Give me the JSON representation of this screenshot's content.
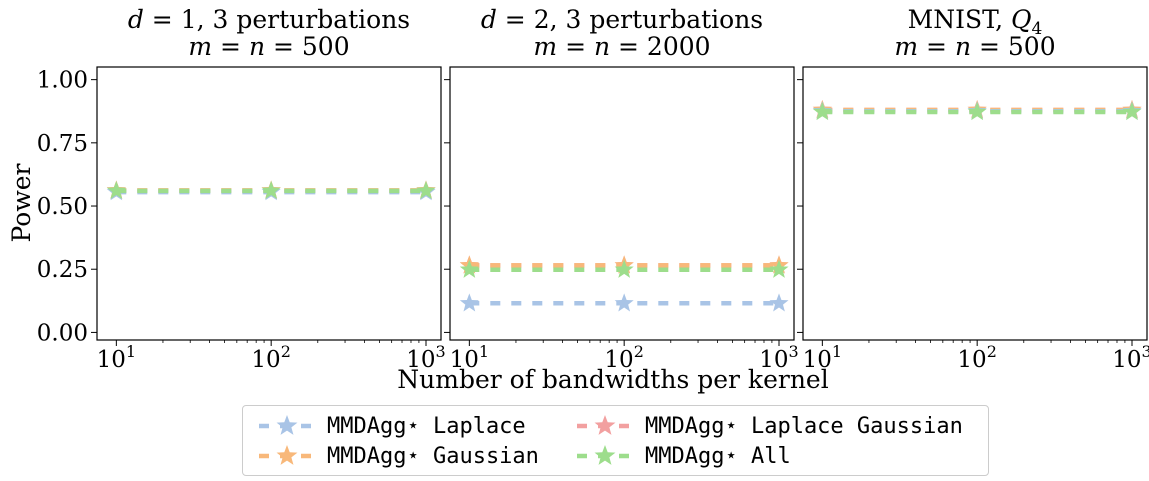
{
  "chart_data": {
    "type": "line",
    "ylabel": "Power",
    "xlabel": "Number of bandwidths per kernel",
    "x": [
      10,
      100,
      1000
    ],
    "xscale": "log",
    "xlim": [
      7.5,
      1250
    ],
    "ylim": [
      -0.03,
      1.05
    ],
    "yticks": [
      "0.00",
      "0.25",
      "0.50",
      "0.75",
      "1.00"
    ],
    "xticks": [
      {
        "base": "10",
        "exp": "1"
      },
      {
        "base": "10",
        "exp": "2"
      },
      {
        "base": "10",
        "exp": "3"
      }
    ],
    "series_names": [
      "MMDAgg⋆ Laplace",
      "MMDAgg⋆ Gaussian",
      "MMDAgg⋆ Laplace Gaussian",
      "MMDAgg⋆ All"
    ],
    "series_colors": [
      "#a9c4e6",
      "#f8b87a",
      "#f2a0a0",
      "#9ddd8c"
    ],
    "grid": false,
    "legend_placement": "bottom-center",
    "panels": [
      {
        "title_line1": "d = 1, 3 perturbations",
        "title_line2": "m = n = 500",
        "series": [
          {
            "name": "MMDAgg⋆ Laplace",
            "values": [
              0.555,
              0.555,
              0.555
            ]
          },
          {
            "name": "MMDAgg⋆ Gaussian",
            "values": [
              0.562,
              0.562,
              0.562
            ]
          },
          {
            "name": "MMDAgg⋆ Laplace Gaussian",
            "values": [
              0.561,
              0.561,
              0.561
            ]
          },
          {
            "name": "MMDAgg⋆ All",
            "values": [
              0.56,
              0.56,
              0.56
            ]
          }
        ]
      },
      {
        "title_line1": "d = 2, 3 perturbations",
        "title_line2": "m = n = 2000",
        "series": [
          {
            "name": "MMDAgg⋆ Laplace",
            "values": [
              0.115,
              0.115,
              0.115
            ]
          },
          {
            "name": "MMDAgg⋆ Gaussian",
            "values": [
              0.265,
              0.265,
              0.265
            ]
          },
          {
            "name": "MMDAgg⋆ Laplace Gaussian",
            "values": [
              0.265,
              0.265,
              0.265
            ]
          },
          {
            "name": "MMDAgg⋆ All",
            "values": [
              0.248,
              0.248,
              0.248
            ]
          }
        ]
      },
      {
        "title_line1": "MNIST, Q4",
        "title_line2": "m = n = 500",
        "series": [
          {
            "name": "MMDAgg⋆ Laplace",
            "values": [
              0.875,
              0.875,
              0.875
            ]
          },
          {
            "name": "MMDAgg⋆ Gaussian",
            "values": [
              0.88,
              0.88,
              0.88
            ]
          },
          {
            "name": "MMDAgg⋆ Laplace Gaussian",
            "values": [
              0.88,
              0.88,
              0.88
            ]
          },
          {
            "name": "MMDAgg⋆ All",
            "values": [
              0.872,
              0.872,
              0.872
            ]
          }
        ]
      }
    ]
  }
}
